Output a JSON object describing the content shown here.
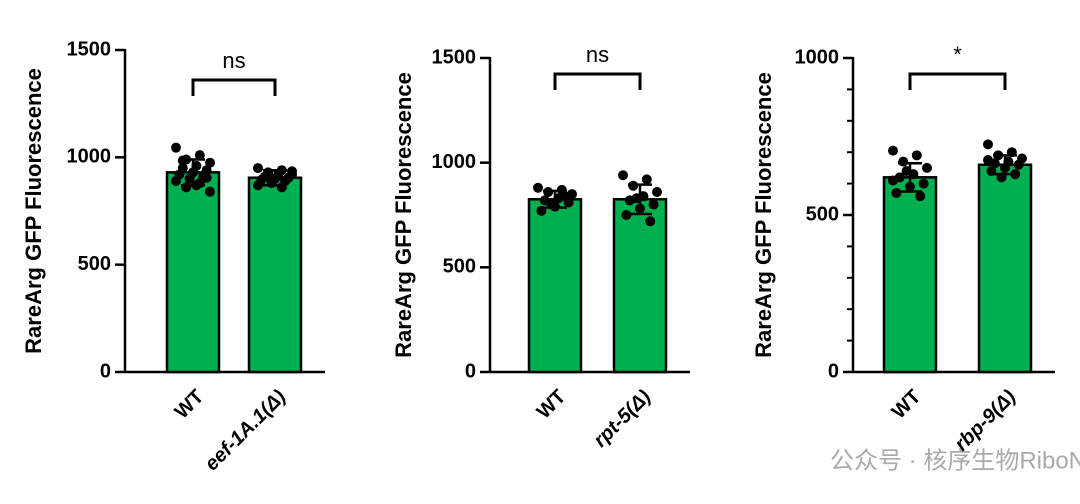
{
  "chart_data": [
    {
      "type": "bar",
      "ylabel": "RareArg GFP Fluorescence",
      "categories": [
        "WT",
        "eef-1A.1(Δ)"
      ],
      "values": [
        930,
        905
      ],
      "errors": [
        60,
        35
      ],
      "points": [
        [
          1045,
          1010,
          990,
          975,
          960,
          950,
          940,
          930,
          920,
          910,
          900,
          890,
          880,
          860,
          840,
          870,
          985,
          905
        ],
        [
          950,
          940,
          930,
          920,
          915,
          910,
          905,
          900,
          895,
          890,
          880,
          870,
          860,
          925,
          935
        ]
      ],
      "color": "#00b050",
      "ylim": [
        0,
        1500
      ],
      "yticks": [
        0,
        500,
        1000,
        1500
      ],
      "annotation": "ns"
    },
    {
      "type": "bar",
      "ylabel": "RareArg GFP Fluorescence",
      "categories": [
        "WT",
        "rpt-5(Δ)"
      ],
      "values": [
        825,
        825
      ],
      "errors": [
        40,
        70
      ],
      "points": [
        [
          880,
          870,
          860,
          850,
          830,
          820,
          810,
          790,
          770,
          840,
          800
        ],
        [
          940,
          920,
          890,
          860,
          840,
          820,
          800,
          780,
          750,
          720,
          830
        ]
      ],
      "color": "#00b050",
      "ylim": [
        0,
        1500
      ],
      "yticks": [
        0,
        500,
        1000,
        1500
      ],
      "annotation": "ns"
    },
    {
      "type": "bar",
      "ylabel": "RareArg GFP Fluorescence",
      "categories": [
        "WT",
        "rbp-9(Δ)"
      ],
      "values": [
        620,
        660
      ],
      "errors": [
        45,
        30
      ],
      "points": [
        [
          705,
          690,
          670,
          650,
          630,
          620,
          600,
          590,
          570,
          560,
          640,
          610
        ],
        [
          725,
          700,
          690,
          680,
          670,
          665,
          660,
          650,
          640,
          630,
          620,
          675
        ]
      ],
      "color": "#00b050",
      "ylim": [
        0,
        1000
      ],
      "yticks": [
        0,
        500,
        1000
      ],
      "yminor": [
        100,
        200,
        300,
        400,
        600,
        700,
        800,
        900
      ],
      "annotation": "*"
    }
  ],
  "watermark": "公众号 · 核序生物RiboNext"
}
